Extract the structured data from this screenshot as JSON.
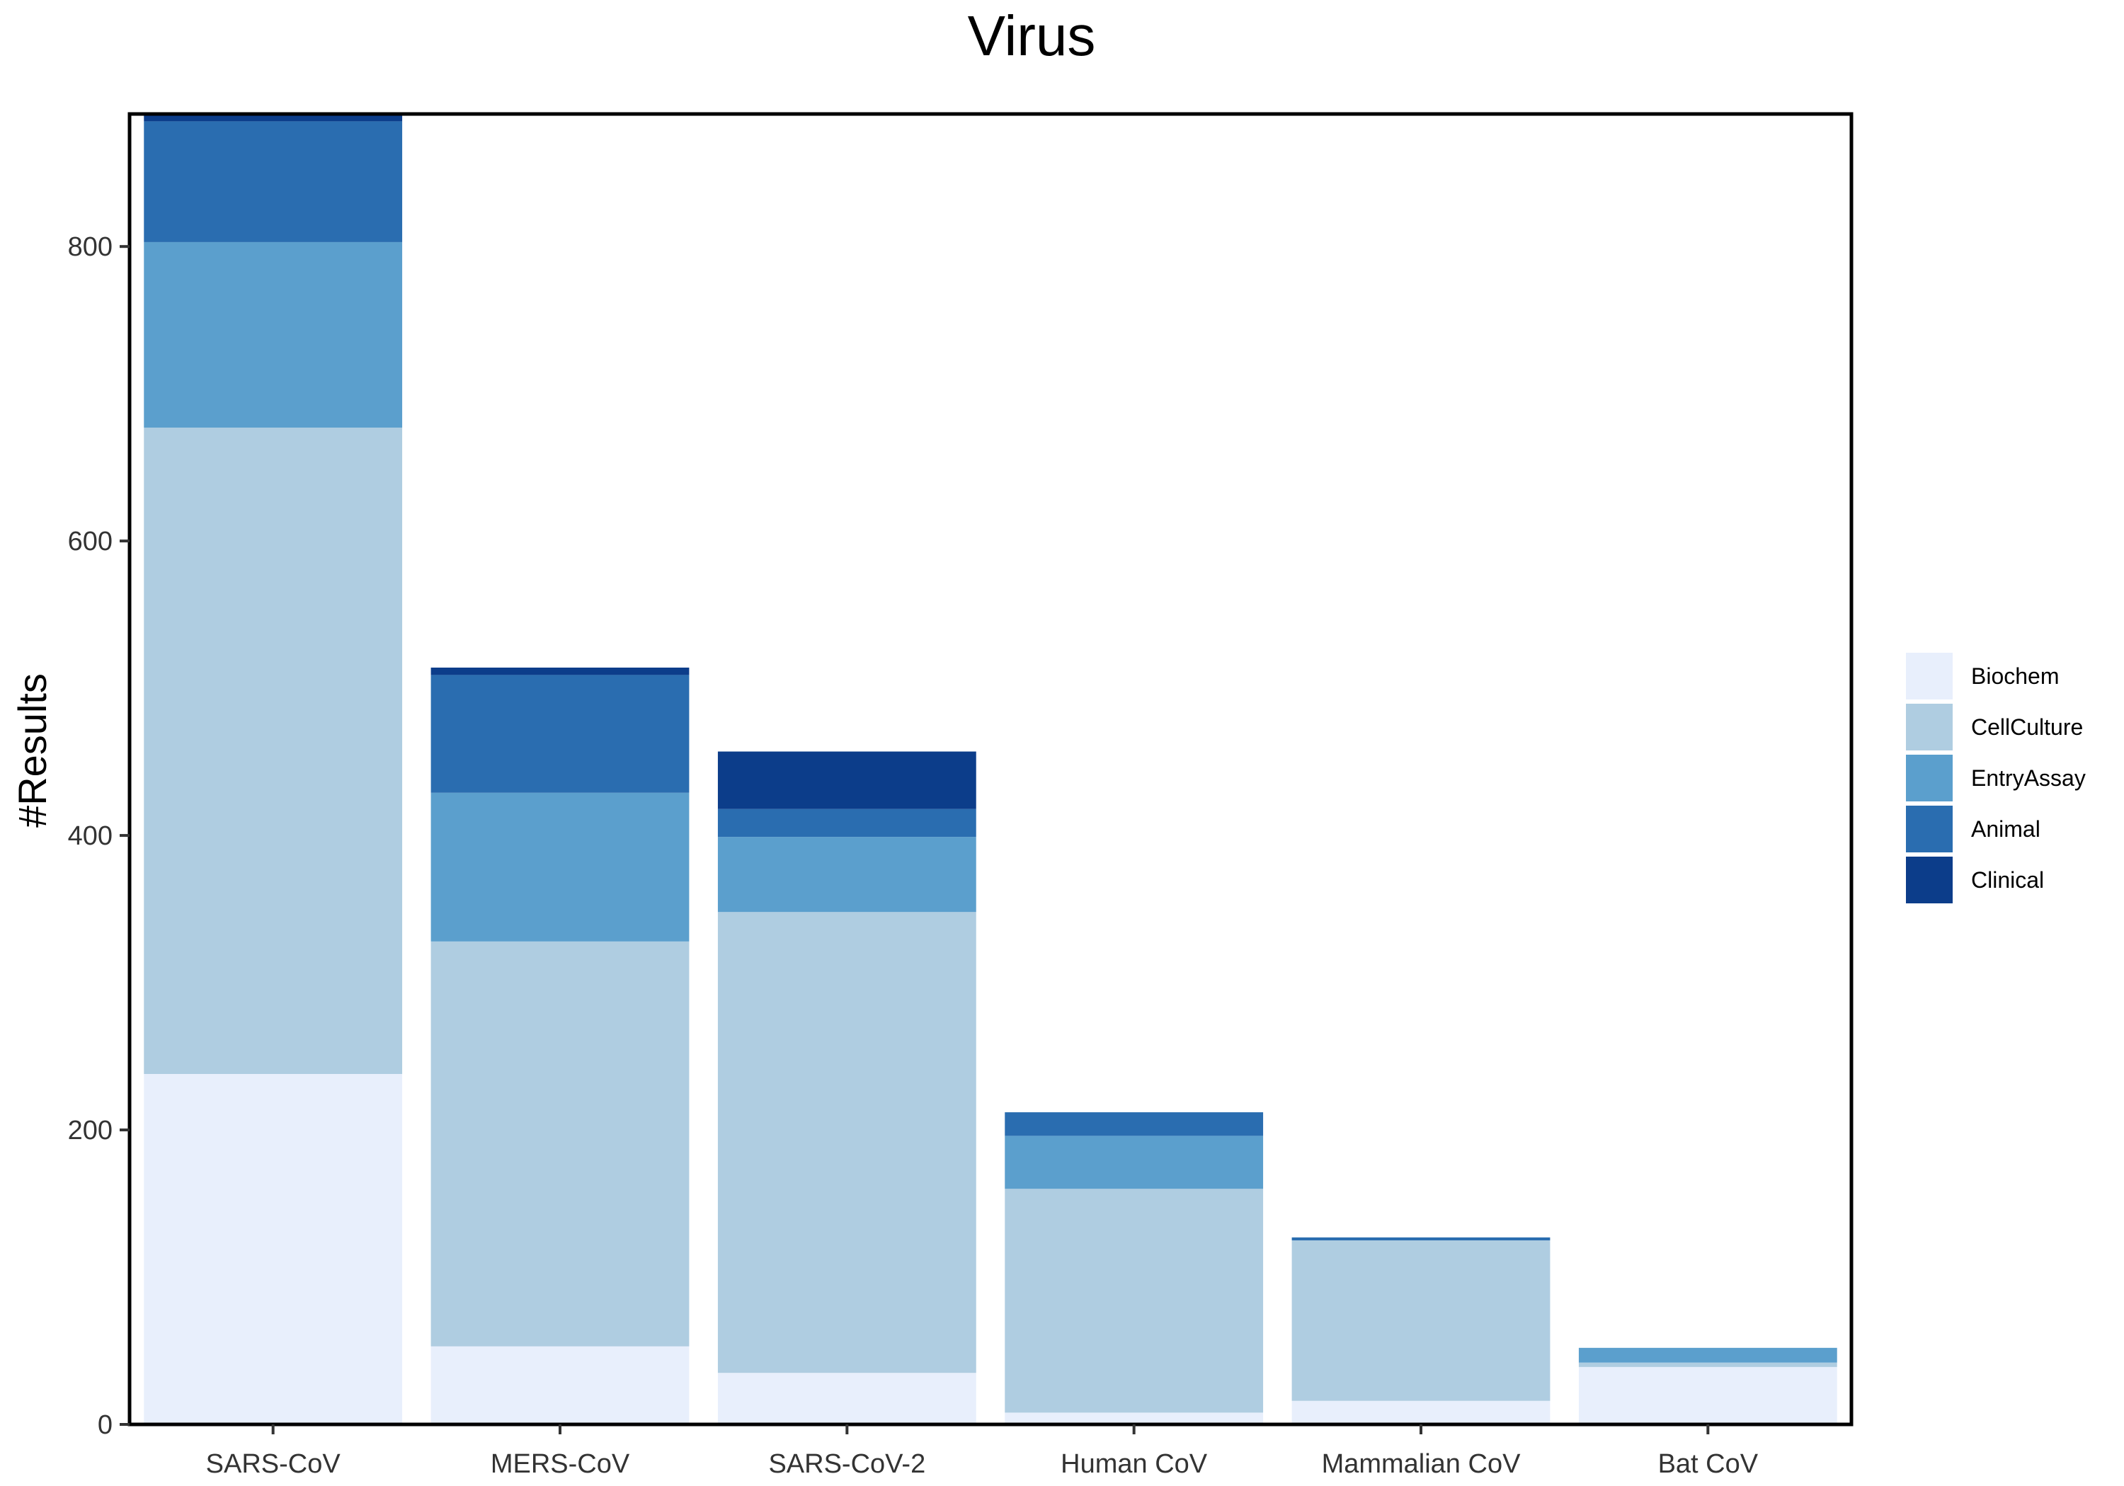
{
  "chart_data": {
    "type": "bar",
    "stacked": true,
    "title": "Virus",
    "xlabel": "",
    "ylabel": "#Results",
    "ylim": [
      0,
      890
    ],
    "yticks": [
      0,
      200,
      400,
      600,
      800
    ],
    "grid": false,
    "legend_position": "right",
    "categories": [
      "SARS-CoV",
      "MERS-CoV",
      "SARS-CoV-2",
      "Human CoV",
      "Mammalian CoV",
      "Bat CoV"
    ],
    "series": [
      {
        "name": "Biochem",
        "color": "#e8effc",
        "values": [
          238,
          53,
          35,
          8,
          16,
          39
        ]
      },
      {
        "name": "CellCulture",
        "color": "#afcde1",
        "values": [
          439,
          275,
          313,
          152,
          109,
          3
        ]
      },
      {
        "name": "EntryAssay",
        "color": "#5b9fcd",
        "values": [
          126,
          101,
          51,
          36,
          0,
          10
        ]
      },
      {
        "name": "Animal",
        "color": "#2a6db0",
        "values": [
          82,
          80,
          19,
          16,
          2,
          0
        ]
      },
      {
        "name": "Clinical",
        "color": "#0c3d8a",
        "values": [
          5,
          5,
          39,
          0,
          0,
          0
        ]
      }
    ]
  }
}
